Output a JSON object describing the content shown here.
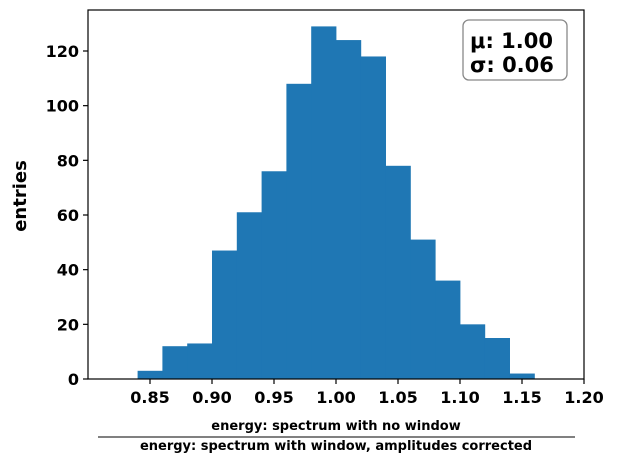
{
  "chart_data": {
    "type": "bar",
    "subtype": "histogram",
    "bins": [
      {
        "x0": 0.84,
        "x1": 0.86,
        "count": 3
      },
      {
        "x0": 0.86,
        "x1": 0.88,
        "count": 12
      },
      {
        "x0": 0.88,
        "x1": 0.9,
        "count": 13
      },
      {
        "x0": 0.9,
        "x1": 0.92,
        "count": 47
      },
      {
        "x0": 0.92,
        "x1": 0.94,
        "count": 61
      },
      {
        "x0": 0.94,
        "x1": 0.96,
        "count": 76
      },
      {
        "x0": 0.96,
        "x1": 0.98,
        "count": 108
      },
      {
        "x0": 0.98,
        "x1": 1.0,
        "count": 129
      },
      {
        "x0": 1.0,
        "x1": 1.02,
        "count": 124
      },
      {
        "x0": 1.02,
        "x1": 1.04,
        "count": 118
      },
      {
        "x0": 1.04,
        "x1": 1.06,
        "count": 78
      },
      {
        "x0": 1.06,
        "x1": 1.08,
        "count": 51
      },
      {
        "x0": 1.08,
        "x1": 1.1,
        "count": 36
      },
      {
        "x0": 1.1,
        "x1": 1.12,
        "count": 20
      },
      {
        "x0": 1.12,
        "x1": 1.14,
        "count": 15
      },
      {
        "x0": 1.14,
        "x1": 1.16,
        "count": 2
      }
    ],
    "bar_color": "#1f77b4",
    "xlim": [
      0.8,
      1.2
    ],
    "ylim": [
      0,
      135
    ],
    "xticks": [
      "0.85",
      "0.90",
      "0.95",
      "1.00",
      "1.05",
      "1.10",
      "1.15",
      "1.20"
    ],
    "yticks": [
      "0",
      "20",
      "40",
      "60",
      "80",
      "100",
      "120"
    ],
    "ylabel": "entries",
    "xlabel_numerator": "energy: spectrum with no window",
    "xlabel_denominator": "energy: spectrum with window, amplitudes corrected",
    "grid": false,
    "stats_box": {
      "mu_label": "μ: 1.00",
      "sigma_label": "σ: 0.06",
      "placement": "top-right"
    }
  }
}
